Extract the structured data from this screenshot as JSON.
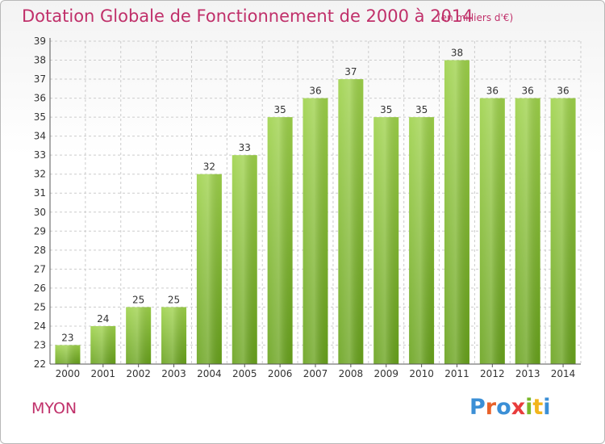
{
  "title": "Dotation Globale de Fonctionnement de 2000 à 2014",
  "subtitle": "(en milliers d'€)",
  "commune": "MYON",
  "logo": {
    "letters": [
      "P",
      "r",
      "o",
      "x",
      "i",
      "t",
      "i"
    ],
    "colors": [
      "#3b8fd6",
      "#e8622a",
      "#3b8fd6",
      "#e83c3c",
      "#7ab82a",
      "#f2b51c",
      "#3b8fd6"
    ]
  },
  "colors": {
    "bar_top": "#9ed24a",
    "bar_bottom": "#68a21c",
    "grid": "#cccccc",
    "title": "#c0306a"
  },
  "chart_data": {
    "type": "bar",
    "categories": [
      "2000",
      "2001",
      "2002",
      "2003",
      "2004",
      "2005",
      "2006",
      "2007",
      "2008",
      "2009",
      "2010",
      "2011",
      "2012",
      "2013",
      "2014"
    ],
    "values": [
      23,
      24,
      25,
      25,
      32,
      33,
      35,
      36,
      37,
      35,
      35,
      38,
      36,
      36,
      36
    ],
    "data_labels": [
      "23",
      "24",
      "25",
      "25",
      "32",
      "33",
      "35",
      "36",
      "37",
      "35",
      "35",
      "38",
      "36",
      "36",
      "36"
    ],
    "title": "Dotation Globale de Fonctionnement de 2000 à 2014",
    "ylim": [
      22,
      39
    ],
    "yticks": [
      "22",
      "23",
      "24",
      "25",
      "26",
      "27",
      "28",
      "29",
      "30",
      "31",
      "32",
      "33",
      "34",
      "35",
      "36",
      "37",
      "38",
      "39"
    ],
    "grid": true
  }
}
